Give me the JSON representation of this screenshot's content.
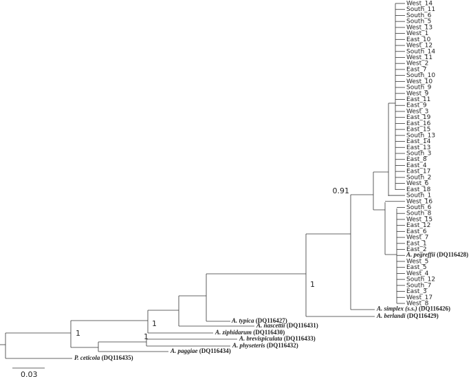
{
  "tree": {
    "leaves": [
      "West_14",
      "South_11",
      "South_6",
      "South_5",
      "West_13",
      "West_1",
      "East_10",
      "West_12",
      "South_14",
      "West_11",
      "West_2",
      "East_7",
      "South_10",
      "West_10",
      "South_9",
      "West_9",
      "East_11",
      "East_9",
      "West_3",
      "East_19",
      "East_16",
      "East_15",
      "South_13",
      "East_14",
      "East_13",
      "South_3",
      "East_8",
      "East_4",
      "East_17",
      "South_2",
      "West_6",
      "East_18",
      "South_1",
      "West_16",
      "South_6",
      "South_8",
      "West_15",
      "East_12",
      "East_6",
      "West_7",
      "East_1",
      "East_2",
      {
        "name": "A. pegreffii",
        "accession": "(DQ116428)"
      },
      "West_5",
      "East_5",
      "West_4",
      "South_12",
      "South_7",
      "East_3",
      "West_17",
      "West_8",
      {
        "name": "A. simplex (s.s.)",
        "accession": "(DQ116426)"
      },
      {
        "name": "A. berlandi",
        "accession": "(DQ116429)"
      },
      {
        "name": "A. typica",
        "accession": "(DQ116427)"
      },
      {
        "name": "A. nascettii",
        "accession": "(DQ116431)"
      },
      {
        "name": "A. ziphidarum",
        "accession": "(DQ116430)"
      },
      {
        "name": "A. brevispiculata",
        "accession": "(DQ116433)"
      },
      {
        "name": "A. physeteris",
        "accession": "(DQ116432)"
      },
      {
        "name": "A. paggiae",
        "accession": "(DQ116434)"
      },
      {
        "name": "P. ceticola",
        "accession": "(DQ116435)"
      }
    ],
    "support_values": [
      0.91,
      1,
      1,
      1,
      1
    ],
    "scale_bar": 0.03
  }
}
